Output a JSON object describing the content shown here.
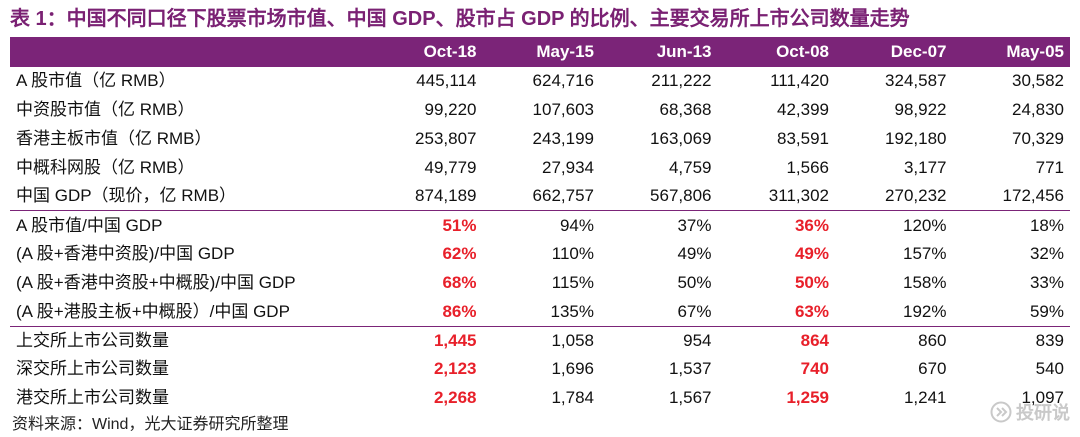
{
  "title": "表 1：中国不同口径下股票市场市值、中国 GDP、股市占 GDP 的比例、主要交易所上市公司数量走势",
  "columns": [
    "",
    "Oct-18",
    "May-15",
    "Jun-13",
    "Oct-08",
    "Dec-07",
    "May-05"
  ],
  "rows": [
    {
      "label": "A 股市值（亿 RMB）",
      "values": [
        "445,114",
        "624,716",
        "211,222",
        "111,420",
        "324,587",
        "30,582"
      ]
    },
    {
      "label": "中资股市值（亿 RMB）",
      "values": [
        "99,220",
        "107,603",
        "68,368",
        "42,399",
        "98,922",
        "24,830"
      ]
    },
    {
      "label": "香港主板市值（亿 RMB）",
      "values": [
        "253,807",
        "243,199",
        "163,069",
        "83,591",
        "192,180",
        "70,329"
      ]
    },
    {
      "label": "中概科网股（亿 RMB）",
      "values": [
        "49,779",
        "27,934",
        "4,759",
        "1,566",
        "3,177",
        "771"
      ]
    },
    {
      "label": "中国 GDP（现价，亿 RMB）",
      "values": [
        "874,189",
        "662,757",
        "567,806",
        "311,302",
        "270,232",
        "172,456"
      ]
    },
    {
      "label": "A 股市值/中国 GDP",
      "values": [
        "51%",
        "94%",
        "37%",
        "36%",
        "120%",
        "18%"
      ]
    },
    {
      "label": "(A 股+香港中资股)/中国 GDP",
      "values": [
        "62%",
        "110%",
        "49%",
        "49%",
        "157%",
        "32%"
      ]
    },
    {
      "label": "(A 股+香港中资股+中概股)/中国 GDP",
      "values": [
        "68%",
        "115%",
        "50%",
        "50%",
        "158%",
        "33%"
      ]
    },
    {
      "label": "(A 股+港股主板+中概股）/中国 GDP",
      "values": [
        "86%",
        "135%",
        "67%",
        "63%",
        "192%",
        "59%"
      ]
    },
    {
      "label": "上交所上市公司数量",
      "values": [
        "1,445",
        "1,058",
        "954",
        "864",
        "860",
        "839"
      ]
    },
    {
      "label": "深交所上市公司数量",
      "values": [
        "2,123",
        "1,696",
        "1,537",
        "740",
        "670",
        "540"
      ]
    },
    {
      "label": "港交所上市公司数量",
      "values": [
        "2,268",
        "1,784",
        "1,567",
        "1,259",
        "1,241",
        "1,097"
      ]
    }
  ],
  "source": "资料来源：Wind，光大证券研究所整理",
  "watermark": "投研说",
  "colors": {
    "header_bg": "#7b2478",
    "title": "#7a2173",
    "highlight": "#e8202a"
  }
}
